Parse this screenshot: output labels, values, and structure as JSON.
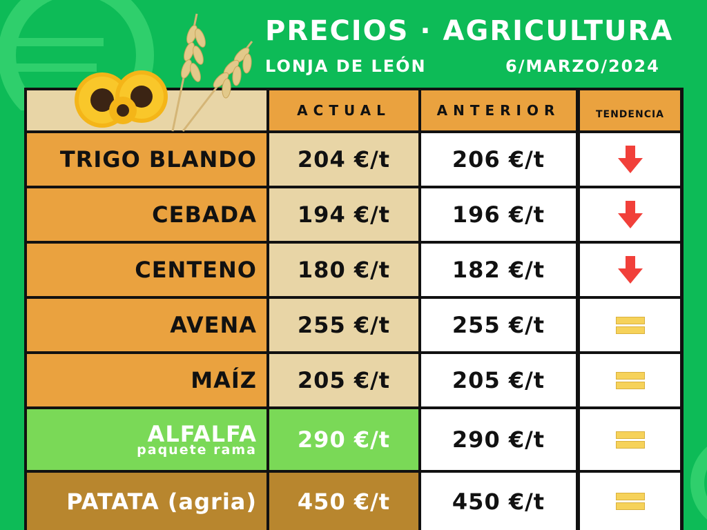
{
  "header": {
    "title": "PRECIOS · AGRICULTURA",
    "location": "LONJA DE LEÓN",
    "date": "6/MARZO/2024"
  },
  "columns": {
    "actual": "ACTUAL",
    "anterior": "ANTERIOR",
    "tendencia": "TENDENCIA"
  },
  "rows": [
    {
      "name": "TRIGO BLANDO",
      "actual": "204 €/t",
      "anterior": "206 €/t",
      "trend": "down-arrow-icon"
    },
    {
      "name": "CEBADA",
      "actual": "194 €/t",
      "anterior": "196 €/t",
      "trend": "down-arrow-icon"
    },
    {
      "name": "CENTENO",
      "actual": "180 €/t",
      "anterior": "182 €/t",
      "trend": "down-arrow-icon"
    },
    {
      "name": "AVENA",
      "actual": "255 €/t",
      "anterior": "255 €/t",
      "trend": "equal-icon"
    },
    {
      "name": "MAÍZ",
      "actual": "205 €/t",
      "anterior": "205 €/t",
      "trend": "equal-icon"
    },
    {
      "name": "ALFALFA",
      "subname": "paquete rama",
      "actual": "290 €/t",
      "anterior": "290 €/t",
      "trend": "equal-icon"
    },
    {
      "name": "PATATA (agria)",
      "actual": "450 €/t",
      "anterior": "450 €/t",
      "trend": "equal-icon"
    }
  ],
  "colors": {
    "background": "#0dbb57",
    "orange": "#eaa23f",
    "beige": "#e8d5a6",
    "alfalfa_green": "#7ad957",
    "patata_brown": "#b8862e",
    "down_arrow": "#f1403a",
    "equal_yellow": "#f6d25a"
  }
}
